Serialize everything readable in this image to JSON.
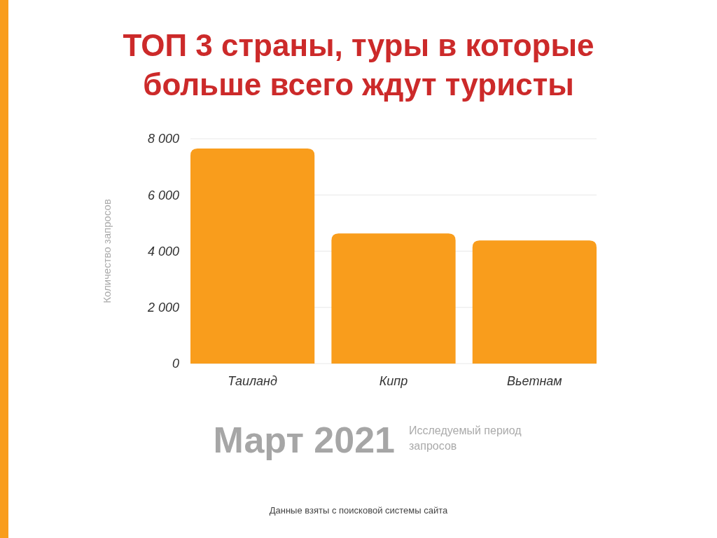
{
  "chart_data": {
    "type": "bar",
    "title": "ТОП 3 страны, туры в которые больше всего ждут туристы",
    "ylabel": "Количество запросов",
    "categories": [
      "Таиланд",
      "Кипр",
      "Вьетнам"
    ],
    "values": [
      7650,
      4630,
      4380
    ],
    "color": "#f99d1c",
    "ylim": [
      0,
      8000
    ],
    "yticks": [
      {
        "value": 0,
        "label": "0"
      },
      {
        "value": 2000,
        "label": "2 000"
      },
      {
        "value": 4000,
        "label": "4 000"
      },
      {
        "value": 6000,
        "label": "6 000"
      },
      {
        "value": 8000,
        "label": "8 000"
      }
    ],
    "grid": "y",
    "annotations": [
      "Март 2021",
      "Исследуемый период запросов",
      "Данные взяты с поисковой системы сайта"
    ]
  }
}
